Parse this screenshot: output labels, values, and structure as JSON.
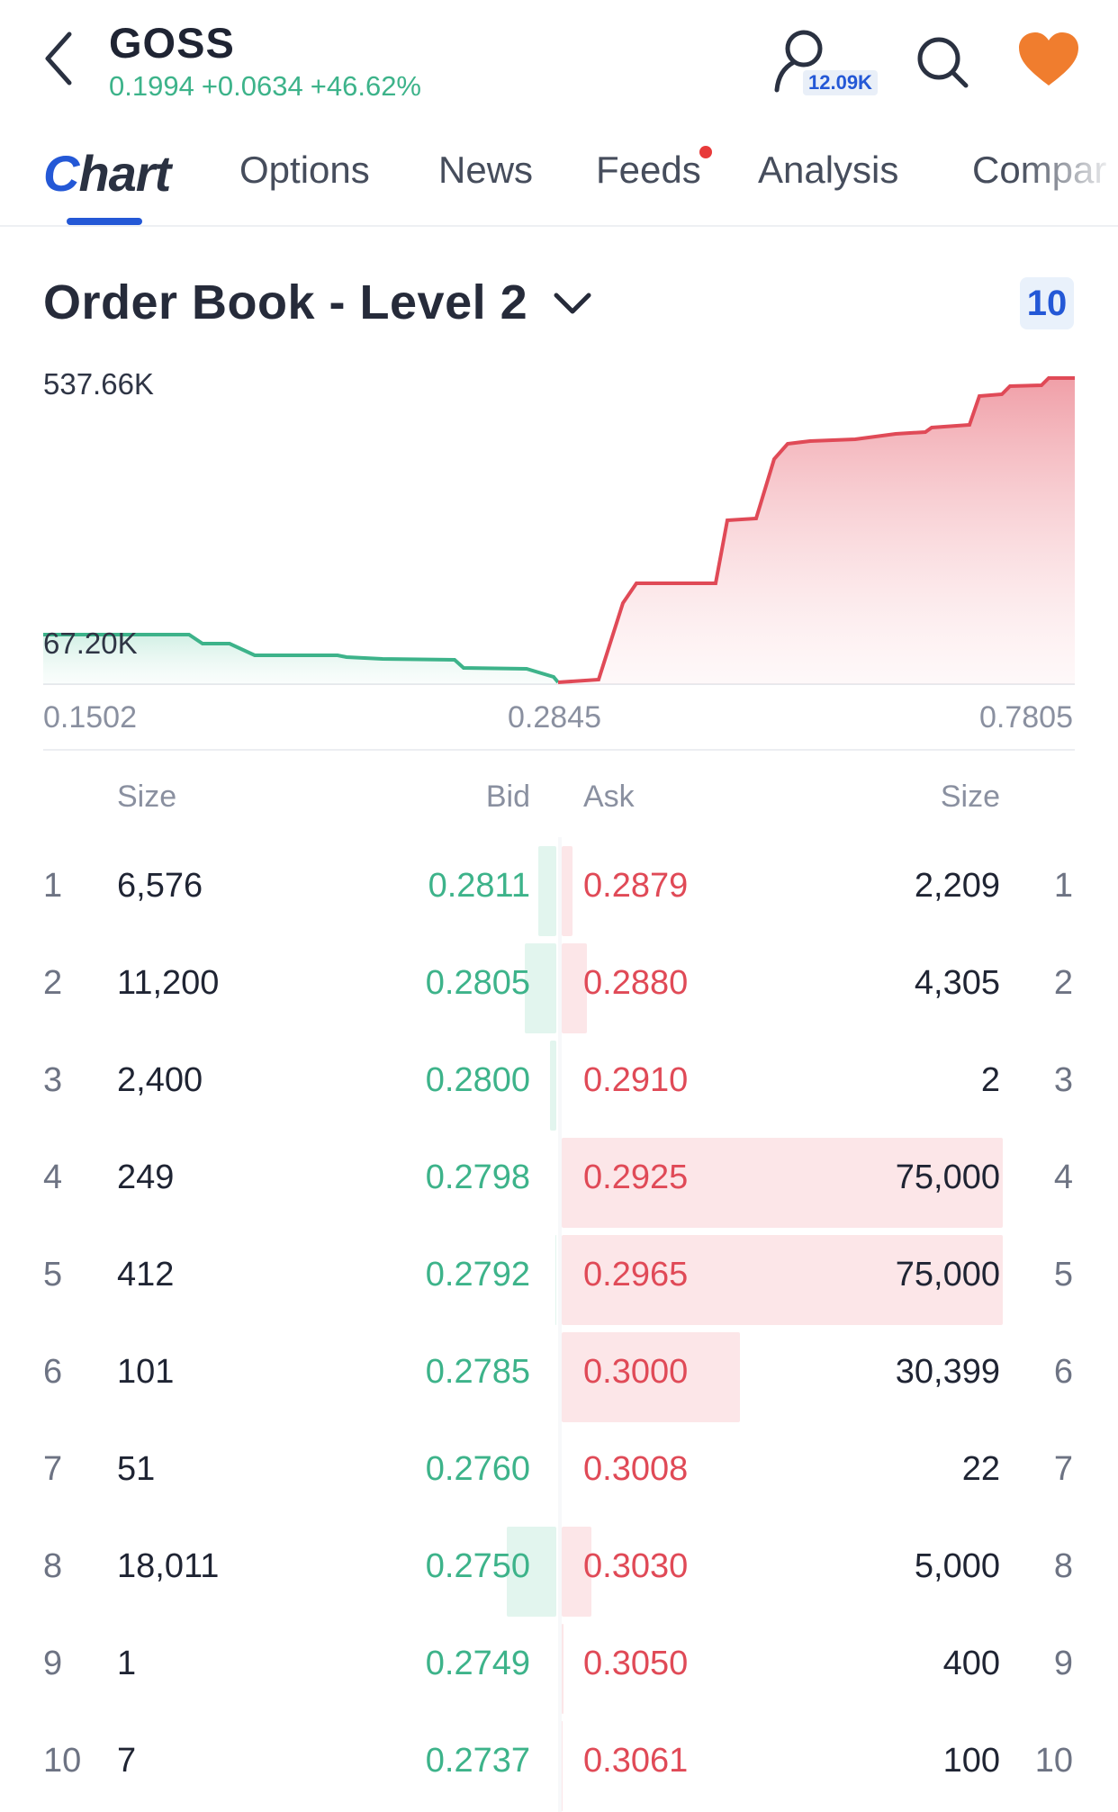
{
  "header": {
    "ticker": "GOSS",
    "price": "0.1994",
    "change": "+0.0634",
    "change_pct": "+46.62%",
    "watchers_count": "12.09K",
    "icons": [
      "back-arrow-icon",
      "watchlist-user-icon",
      "search-icon",
      "heart-icon"
    ],
    "heart_color": "#f07d2e",
    "up_color": "#3db38a"
  },
  "tabs": {
    "chart": "Chart",
    "options": "Options",
    "news": "News",
    "feeds": "Feeds",
    "analysis": "Analysis",
    "compare": "Compar"
  },
  "orderbook": {
    "title": "Order Book - Level 2",
    "depth": "10",
    "chart": {
      "y_max_label": "537.66K",
      "y_bid_label": "67.20K",
      "x_left": "0.1502",
      "x_mid": "0.2845",
      "x_right": "0.7805",
      "bid_color": "#3db38a",
      "ask_color": "#e04a57"
    },
    "headers": {
      "bid_size": "Size",
      "bid": "Bid",
      "ask": "Ask",
      "ask_size": "Size"
    },
    "rows": [
      {
        "n": "1",
        "bid_size": "6,576",
        "bid": "0.2811",
        "ask": "0.2879",
        "ask_size": "2,209",
        "bid_fill": 0.085,
        "ask_fill": 0.025
      },
      {
        "n": "2",
        "bid_size": "11,200",
        "bid": "0.2805",
        "ask": "0.2880",
        "ask_size": "4,305",
        "bid_fill": 0.15,
        "ask_fill": 0.057
      },
      {
        "n": "3",
        "bid_size": "2,400",
        "bid": "0.2800",
        "ask": "0.2910",
        "ask_size": "2",
        "bid_fill": 0.03,
        "ask_fill": 0.0
      },
      {
        "n": "4",
        "bid_size": "249",
        "bid": "0.2798",
        "ask": "0.2925",
        "ask_size": "75,000",
        "bid_fill": 0.0,
        "ask_fill": 1.0
      },
      {
        "n": "5",
        "bid_size": "412",
        "bid": "0.2792",
        "ask": "0.2965",
        "ask_size": "75,000",
        "bid_fill": 0.005,
        "ask_fill": 1.0
      },
      {
        "n": "6",
        "bid_size": "101",
        "bid": "0.2785",
        "ask": "0.3000",
        "ask_size": "30,399",
        "bid_fill": 0.0,
        "ask_fill": 0.405
      },
      {
        "n": "7",
        "bid_size": "51",
        "bid": "0.2760",
        "ask": "0.3008",
        "ask_size": "22",
        "bid_fill": 0.0,
        "ask_fill": 0.0
      },
      {
        "n": "8",
        "bid_size": "18,011",
        "bid": "0.2750",
        "ask": "0.3030",
        "ask_size": "5,000",
        "bid_fill": 0.24,
        "ask_fill": 0.067
      },
      {
        "n": "9",
        "bid_size": "1",
        "bid": "0.2749",
        "ask": "0.3050",
        "ask_size": "400",
        "bid_fill": 0.0,
        "ask_fill": 0.005
      },
      {
        "n": "10",
        "bid_size": "7",
        "bid": "0.2737",
        "ask": "0.3061",
        "ask_size": "100",
        "bid_fill": 0.0,
        "ask_fill": 0.002
      }
    ]
  }
}
